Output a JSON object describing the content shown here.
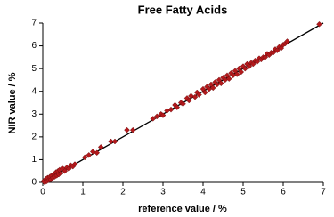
{
  "chart_data": {
    "type": "scatter",
    "title": "Free Fatty Acids",
    "x_label": "reference value / %",
    "y_label": "NIR value / %",
    "xlim": [
      0,
      7
    ],
    "ylim": [
      0,
      7
    ],
    "xticks": [
      0,
      1,
      2,
      3,
      4,
      5,
      6,
      7
    ],
    "yticks": [
      0,
      1,
      2,
      3,
      4,
      5,
      6,
      7
    ],
    "grid": false,
    "color": "#b3191c",
    "line_color": "#000000",
    "series": [
      {
        "x": [
          0.02,
          0.05,
          0.08,
          0.1,
          0.12,
          0.15,
          0.18,
          0.2,
          0.22,
          0.25,
          0.28,
          0.3,
          0.33,
          0.35,
          0.38,
          0.4,
          0.42,
          0.45,
          0.5,
          0.55,
          0.6,
          0.65,
          0.7,
          0.75,
          0.8,
          1.05,
          1.15,
          1.25,
          1.35,
          1.45,
          1.7,
          1.8,
          2.1,
          2.25,
          2.75,
          2.85,
          2.95,
          3.0,
          3.1,
          3.2,
          3.3,
          3.35,
          3.45,
          3.5,
          3.6,
          3.65,
          3.7,
          3.8,
          3.85,
          3.9,
          4.0,
          4.05,
          4.1,
          4.15,
          4.2,
          4.25,
          4.3,
          4.35,
          4.4,
          4.45,
          4.5,
          4.55,
          4.6,
          4.65,
          4.7,
          4.75,
          4.8,
          4.85,
          4.9,
          4.95,
          5.0,
          5.05,
          5.1,
          5.15,
          5.2,
          5.25,
          5.3,
          5.35,
          5.4,
          5.45,
          5.5,
          5.55,
          5.6,
          5.65,
          5.7,
          5.75,
          5.8,
          5.85,
          5.9,
          5.95,
          6.0,
          6.05,
          6.1,
          6.9
        ],
        "values": [
          0.05,
          0.0,
          0.15,
          0.05,
          0.2,
          0.1,
          0.25,
          0.12,
          0.3,
          0.2,
          0.35,
          0.25,
          0.45,
          0.3,
          0.5,
          0.35,
          0.55,
          0.4,
          0.6,
          0.5,
          0.65,
          0.6,
          0.75,
          0.7,
          0.8,
          1.1,
          1.2,
          1.35,
          1.3,
          1.55,
          1.8,
          1.8,
          2.3,
          2.3,
          2.8,
          2.9,
          3.0,
          2.95,
          3.15,
          3.2,
          3.4,
          3.3,
          3.5,
          3.45,
          3.7,
          3.6,
          3.8,
          3.75,
          3.95,
          3.85,
          4.1,
          3.95,
          4.2,
          4.1,
          4.3,
          4.15,
          4.4,
          4.3,
          4.5,
          4.35,
          4.6,
          4.5,
          4.7,
          4.55,
          4.8,
          4.7,
          4.9,
          4.75,
          5.0,
          4.85,
          5.1,
          5.0,
          5.2,
          5.1,
          5.25,
          5.2,
          5.35,
          5.3,
          5.45,
          5.4,
          5.5,
          5.5,
          5.65,
          5.6,
          5.7,
          5.7,
          5.85,
          5.8,
          5.95,
          5.9,
          6.05,
          6.1,
          6.2,
          6.95
        ]
      }
    ]
  }
}
